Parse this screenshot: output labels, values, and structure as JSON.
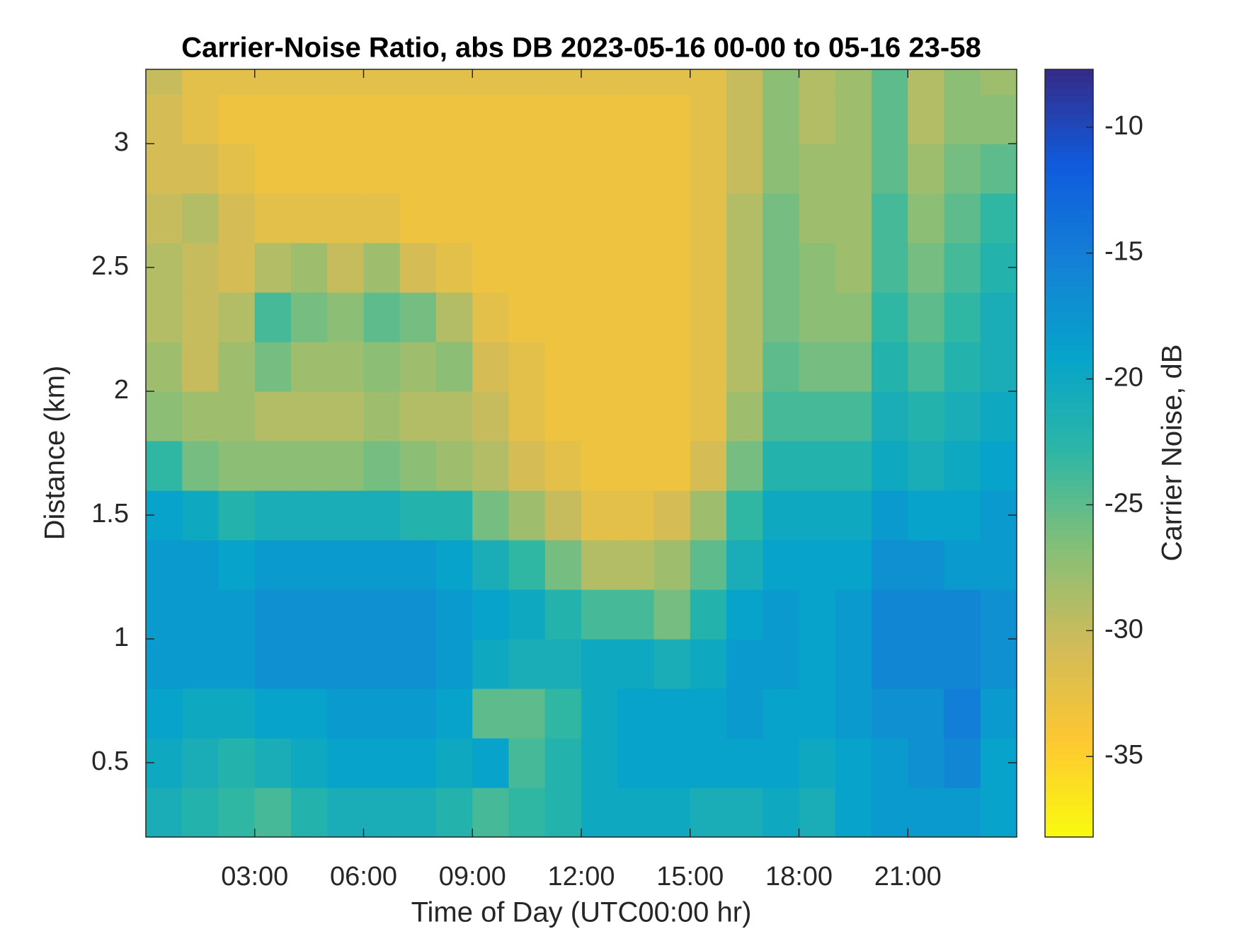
{
  "chart_data": {
    "type": "heatmap",
    "title": "Carrier-Noise Ratio, abs DB 2023-05-16 00-00 to 05-16 23-58",
    "xlabel": "Time of Day (UTC00:00 hr)",
    "ylabel": "Distance (km)",
    "colorbar_label": "Carrier Noise, dB",
    "x": [
      0,
      1,
      2,
      3,
      4,
      5,
      6,
      7,
      8,
      9,
      10,
      11,
      12,
      13,
      14,
      15,
      16,
      17,
      18,
      19,
      20,
      21,
      22,
      23,
      24
    ],
    "y": [
      0.2,
      0.4,
      0.6,
      0.8,
      1.0,
      1.2,
      1.4,
      1.6,
      1.8,
      2.0,
      2.2,
      2.4,
      2.6,
      2.8,
      3.0,
      3.2,
      3.3
    ],
    "z": [
      [
        -21,
        -22,
        -23,
        -24,
        -22,
        -21,
        -21,
        -21,
        -22,
        -24,
        -23,
        -22,
        -20,
        -20,
        -20,
        -21,
        -21,
        -20,
        -21,
        -19,
        -18,
        -18,
        -18,
        -19
      ],
      [
        -20,
        -21,
        -22,
        -21,
        -20,
        -19,
        -19,
        -19,
        -20,
        -19,
        -24,
        -22,
        -20,
        -19,
        -19,
        -19,
        -19,
        -19,
        -20,
        -19,
        -18,
        -17,
        -16,
        -19
      ],
      [
        -19,
        -20,
        -20,
        -19,
        -19,
        -18,
        -18,
        -18,
        -19,
        -25,
        -25,
        -23,
        -20,
        -19,
        -19,
        -19,
        -18,
        -19,
        -19,
        -18,
        -17,
        -17,
        -15,
        -18
      ],
      [
        -18,
        -18,
        -18,
        -17,
        -17,
        -17,
        -17,
        -17,
        -18,
        -20,
        -21,
        -21,
        -20,
        -20,
        -21,
        -20,
        -18,
        -18,
        -19,
        -18,
        -16,
        -16,
        -16,
        -17
      ],
      [
        -18,
        -18,
        -18,
        -17,
        -17,
        -17,
        -17,
        -17,
        -18,
        -19,
        -20,
        -22,
        -24,
        -24,
        -26,
        -22,
        -19,
        -18,
        -19,
        -18,
        -16,
        -16,
        -16,
        -17
      ],
      [
        -18,
        -18,
        -19,
        -18,
        -18,
        -18,
        -18,
        -18,
        -19,
        -21,
        -23,
        -26,
        -29,
        -29,
        -28,
        -25,
        -21,
        -19,
        -19,
        -19,
        -17,
        -17,
        -18,
        -18
      ],
      [
        -19,
        -20,
        -22,
        -21,
        -21,
        -21,
        -21,
        -22,
        -22,
        -26,
        -28,
        -30,
        -32,
        -32,
        -31,
        -28,
        -23,
        -20,
        -20,
        -20,
        -18,
        -19,
        -19,
        -18
      ],
      [
        -23,
        -26,
        -27,
        -27,
        -27,
        -27,
        -26,
        -27,
        -28,
        -29,
        -31,
        -32,
        -33,
        -33,
        -33,
        -31,
        -26,
        -22,
        -22,
        -22,
        -20,
        -21,
        -20,
        -19
      ],
      [
        -27,
        -28,
        -28,
        -29,
        -29,
        -29,
        -28,
        -29,
        -29,
        -30,
        -32,
        -33,
        -33,
        -33,
        -33,
        -32,
        -28,
        -24,
        -24,
        -24,
        -21,
        -22,
        -21,
        -20
      ],
      [
        -28,
        -30,
        -28,
        -26,
        -28,
        -28,
        -27,
        -28,
        -27,
        -31,
        -32,
        -33,
        -33,
        -33,
        -33,
        -32,
        -29,
        -25,
        -26,
        -26,
        -22,
        -24,
        -22,
        -21
      ],
      [
        -29,
        -30,
        -29,
        -24,
        -26,
        -27,
        -25,
        -26,
        -29,
        -32,
        -33,
        -33,
        -33,
        -33,
        -33,
        -32,
        -29,
        -26,
        -27,
        -27,
        -23,
        -25,
        -23,
        -21
      ],
      [
        -29,
        -30,
        -31,
        -29,
        -28,
        -30,
        -28,
        -31,
        -32,
        -33,
        -33,
        -33,
        -33,
        -33,
        -33,
        -32,
        -29,
        -26,
        -27,
        -28,
        -24,
        -26,
        -24,
        -22
      ],
      [
        -30,
        -29,
        -31,
        -32,
        -32,
        -32,
        -32,
        -33,
        -33,
        -33,
        -33,
        -33,
        -33,
        -33,
        -33,
        -32,
        -29,
        -26,
        -28,
        -28,
        -24,
        -27,
        -25,
        -23
      ],
      [
        -31,
        -31,
        -32,
        -33,
        -33,
        -33,
        -33,
        -33,
        -33,
        -33,
        -33,
        -33,
        -33,
        -33,
        -33,
        -32,
        -30,
        -27,
        -28,
        -28,
        -25,
        -28,
        -26,
        -25
      ],
      [
        -31,
        -32,
        -33,
        -33,
        -33,
        -33,
        -33,
        -33,
        -33,
        -33,
        -33,
        -33,
        -33,
        -33,
        -33,
        -32,
        -30,
        -27,
        -29,
        -28,
        -25,
        -29,
        -27,
        -27
      ],
      [
        -30,
        -32,
        -32,
        -32,
        -32,
        -32,
        -32,
        -32,
        -32,
        -32,
        -32,
        -32,
        -32,
        -32,
        -32,
        -32,
        -30,
        -27,
        -29,
        -28,
        -25,
        -29,
        -27,
        -28
      ]
    ],
    "xlim": [
      0,
      24
    ],
    "ylim": [
      0.2,
      3.3
    ],
    "clim": [
      -38.2,
      -7.7
    ],
    "xticks": [
      {
        "value": 3,
        "label": "03:00"
      },
      {
        "value": 6,
        "label": "06:00"
      },
      {
        "value": 9,
        "label": "09:00"
      },
      {
        "value": 12,
        "label": "12:00"
      },
      {
        "value": 15,
        "label": "15:00"
      },
      {
        "value": 18,
        "label": "18:00"
      },
      {
        "value": 21,
        "label": "21:00"
      }
    ],
    "yticks": [
      0.5,
      1,
      1.5,
      2,
      2.5,
      3
    ],
    "cticks": [
      -10,
      -15,
      -20,
      -25,
      -30,
      -35
    ]
  }
}
